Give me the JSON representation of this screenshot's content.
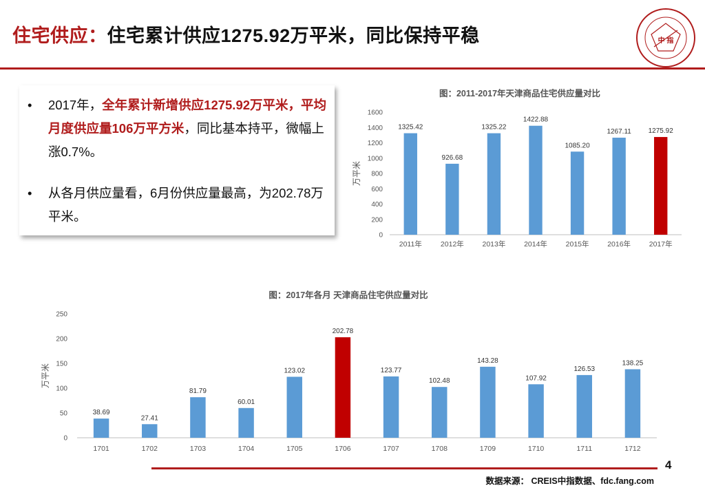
{
  "slide": {
    "title_lead": "住宅供应：",
    "title_main": "住宅累计供应1275.92万平米，同比保持平稳",
    "logo_text": "中 指",
    "page_number": "4",
    "source": "数据来源： CREIS中指数据、fdc.fang.com"
  },
  "bullets": [
    {
      "marker": "•",
      "segments": [
        {
          "text": "2017年，",
          "highlight": false
        },
        {
          "text": "全年累计新增供应1275.92万平米，平均月度供应量106万平方米",
          "highlight": true
        },
        {
          "text": "，同比基本持平，微幅上涨0.7%。",
          "highlight": false
        }
      ]
    },
    {
      "marker": "•",
      "segments": [
        {
          "text": "从各月供应量看，6月份供应量最高，为202.78万平米。",
          "highlight": false
        }
      ]
    }
  ],
  "colors": {
    "accent": "#b01c1c",
    "bar": "#5b9bd5",
    "bar_highlight": "#c00000",
    "axis": "#bfbfbf"
  },
  "chart_data": [
    {
      "type": "bar",
      "title": "图：2011-2017年天津商品住宅供应量对比",
      "ylabel": "万平米",
      "xlabel": "",
      "categories": [
        "2011年",
        "2012年",
        "2013年",
        "2014年",
        "2015年",
        "2016年",
        "2017年"
      ],
      "values": [
        1325.42,
        926.68,
        1325.22,
        1422.88,
        1085.2,
        1267.11,
        1275.92
      ],
      "value_labels": [
        "1325.42",
        "926.68",
        "1325.22",
        "1422.88",
        "1085.20",
        "1267.11",
        "1275.92"
      ],
      "highlight_index": 6,
      "ylim": [
        0,
        1600
      ],
      "yticks": [
        0,
        200,
        400,
        600,
        800,
        1000,
        1200,
        1400,
        1600
      ],
      "grid": false,
      "legend": "none"
    },
    {
      "type": "bar",
      "title": "图：2017年各月 天津商品住宅供应量对比",
      "ylabel": "万平米",
      "xlabel": "",
      "categories": [
        "1701",
        "1702",
        "1703",
        "1704",
        "1705",
        "1706",
        "1707",
        "1708",
        "1709",
        "1710",
        "1711",
        "1712"
      ],
      "values": [
        38.69,
        27.41,
        81.79,
        60.01,
        123.02,
        202.78,
        123.77,
        102.48,
        143.28,
        107.92,
        126.53,
        138.25
      ],
      "value_labels": [
        "38.69",
        "27.41",
        "81.79",
        "60.01",
        "123.02",
        "202.78",
        "123.77",
        "102.48",
        "143.28",
        "107.92",
        "126.53",
        "138.25"
      ],
      "highlight_index": 5,
      "ylim": [
        0,
        250
      ],
      "yticks": [
        0,
        50,
        100,
        150,
        200,
        250
      ],
      "grid": false,
      "legend": "none"
    }
  ]
}
